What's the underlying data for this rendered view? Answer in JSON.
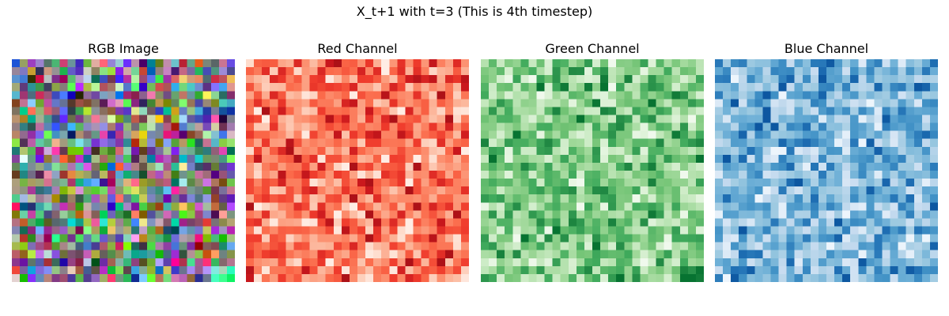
{
  "figure": {
    "suptitle": "X_t+1 with t=3 (This is 4th timestep)"
  },
  "chart_data": {
    "type": "heatmap",
    "grid_size": 28,
    "panels": [
      {
        "title": "RGB Image",
        "kind": "rgb",
        "colormap": "rgb"
      },
      {
        "title": "Red Channel",
        "kind": "channel",
        "channel": 0,
        "colormap": "Reds",
        "colormap_low": "#fff5f0",
        "colormap_high": "#67000d"
      },
      {
        "title": "Green Channel",
        "kind": "channel",
        "channel": 1,
        "colormap": "Greens",
        "colormap_low": "#f7fcf5",
        "colormap_high": "#00441b"
      },
      {
        "title": "Blue Channel",
        "kind": "channel",
        "channel": 2,
        "colormap": "Blues",
        "colormap_low": "#f7fbff",
        "colormap_high": "#08306b"
      }
    ],
    "axes_visible": false,
    "grid": false,
    "legend": "none"
  }
}
